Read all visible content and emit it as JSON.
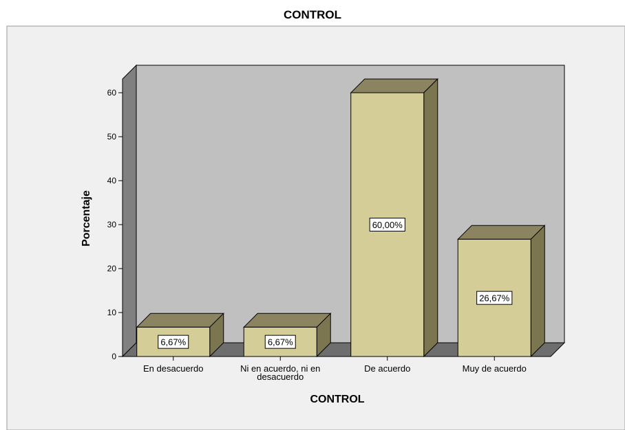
{
  "chart_data": {
    "type": "bar",
    "title": "CONTROL",
    "xlabel": "CONTROL",
    "ylabel": "Porcentaje",
    "categories": [
      "En desacuerdo",
      "Ni en acuerdo, ni en desacuerdo",
      "De acuerdo",
      "Muy de acuerdo"
    ],
    "category_label_lines": [
      [
        "En desacuerdo"
      ],
      [
        "Ni en acuerdo, ni en",
        "desacuerdo"
      ],
      [
        "De acuerdo"
      ],
      [
        "Muy de acuerdo"
      ]
    ],
    "values": [
      6.67,
      6.67,
      60.0,
      26.67
    ],
    "data_labels": [
      "6,67%",
      "6,67%",
      "60,00%",
      "26,67%"
    ],
    "ylim": [
      0,
      60
    ],
    "yticks": [
      0,
      10,
      20,
      30,
      40,
      50,
      60
    ],
    "grid": false,
    "style_3d": true,
    "colors": {
      "page_background": "#f0f0f0",
      "plot_back_wall": "#c0c0c0",
      "side_wall": "#808080",
      "floor": "#6e6e6e",
      "bar_front": "#d5cd98",
      "bar_top": "#8c8460",
      "bar_side": "#7c7650",
      "outline": "#000000"
    }
  }
}
